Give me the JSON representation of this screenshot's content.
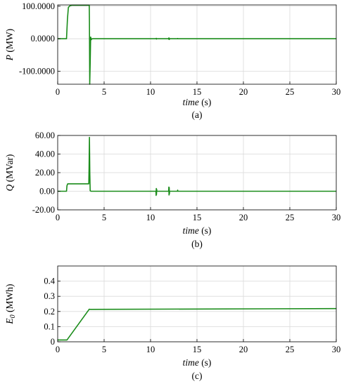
{
  "figure": {
    "panels": [
      {
        "xlabel_var": "time",
        "xlabel_unit": " (s)",
        "ylabel_var": "P",
        "ylabel_sub": "",
        "ylabel_unit": " (MW)",
        "caption": "(a)"
      },
      {
        "xlabel_var": "time",
        "xlabel_unit": " (s)",
        "ylabel_var": "Q",
        "ylabel_sub": "",
        "ylabel_unit": " (MVar)",
        "caption": "(b)"
      },
      {
        "xlabel_var": "time",
        "xlabel_unit": " (s)",
        "ylabel_var": "E",
        "ylabel_sub": "0",
        "ylabel_unit": " (MWh)",
        "caption": "(c)"
      }
    ]
  },
  "colors": {
    "series": "#1a8c1a",
    "grid": "#d9d9d9",
    "axis": "#000000"
  },
  "chart_data": [
    {
      "type": "line",
      "title": "",
      "xlabel": "time (s)",
      "ylabel": "P (MW)",
      "xlim": [
        0,
        30
      ],
      "ylim": [
        -140,
        104
      ],
      "xticks": [
        0,
        5,
        10,
        15,
        20,
        25,
        30
      ],
      "yticks": [
        -100,
        0,
        100
      ],
      "ytick_labels": [
        "-100.0000",
        "0.0000",
        "100.0000"
      ],
      "grid": true,
      "series": [
        {
          "values": [
            [
              0,
              0
            ],
            [
              0.95,
              0
            ],
            [
              1.05,
              60
            ],
            [
              1.15,
              96
            ],
            [
              1.3,
              101
            ],
            [
              1.5,
              103
            ],
            [
              3.4,
              103
            ],
            [
              3.42,
              50
            ],
            [
              3.45,
              -140
            ],
            [
              3.5,
              -75
            ],
            [
              3.55,
              5
            ],
            [
              3.62,
              -3
            ],
            [
              3.7,
              0
            ],
            [
              10.6,
              0
            ],
            [
              10.62,
              1.2
            ],
            [
              10.64,
              -1.2
            ],
            [
              10.66,
              0
            ],
            [
              11.95,
              0
            ],
            [
              11.97,
              2.5
            ],
            [
              11.99,
              -2.5
            ],
            [
              12.01,
              2
            ],
            [
              12.03,
              -2
            ],
            [
              12.05,
              0
            ],
            [
              12.9,
              0
            ],
            [
              12.92,
              0.8
            ],
            [
              12.94,
              0
            ],
            [
              30,
              0
            ]
          ]
        }
      ]
    },
    {
      "type": "line",
      "title": "",
      "xlabel": "time (s)",
      "ylabel": "Q (MVar)",
      "xlim": [
        0,
        30
      ],
      "ylim": [
        -20,
        60
      ],
      "xticks": [
        0,
        5,
        10,
        15,
        20,
        25,
        30
      ],
      "yticks": [
        -20,
        0,
        20,
        40,
        60
      ],
      "ytick_labels": [
        "-20.00",
        "0.00",
        "20.00",
        "40.00",
        "60.00"
      ],
      "grid": true,
      "series": [
        {
          "values": [
            [
              0,
              0
            ],
            [
              0.95,
              0
            ],
            [
              1.0,
              6
            ],
            [
              1.08,
              8
            ],
            [
              3.35,
              8
            ],
            [
              3.38,
              25
            ],
            [
              3.42,
              58
            ],
            [
              3.46,
              20
            ],
            [
              3.5,
              0.5
            ],
            [
              3.6,
              0
            ],
            [
              10.58,
              0
            ],
            [
              10.6,
              -4.5
            ],
            [
              10.62,
              3
            ],
            [
              10.64,
              -3.5
            ],
            [
              10.66,
              2
            ],
            [
              10.68,
              0
            ],
            [
              11.95,
              0
            ],
            [
              11.97,
              4.5
            ],
            [
              11.99,
              -4
            ],
            [
              12.01,
              4
            ],
            [
              12.03,
              -3
            ],
            [
              12.05,
              0
            ],
            [
              12.9,
              0
            ],
            [
              12.92,
              1.2
            ],
            [
              12.94,
              0
            ],
            [
              30,
              0
            ]
          ]
        }
      ]
    },
    {
      "type": "line",
      "title": "",
      "xlabel": "time (s)",
      "ylabel": "E0 (MWh)",
      "xlim": [
        0,
        30
      ],
      "ylim": [
        0,
        0.5
      ],
      "xticks": [
        0,
        5,
        10,
        15,
        20,
        25,
        30
      ],
      "yticks": [
        0,
        0.1,
        0.2,
        0.3,
        0.4
      ],
      "ytick_labels": [
        "0",
        "0.1",
        "0.2",
        "0.3",
        "0.4"
      ],
      "grid": true,
      "series": [
        {
          "values": [
            [
              0,
              0.012
            ],
            [
              1.0,
              0.012
            ],
            [
              3.4,
              0.215
            ],
            [
              3.45,
              0.214
            ],
            [
              30,
              0.219
            ]
          ]
        }
      ]
    }
  ]
}
